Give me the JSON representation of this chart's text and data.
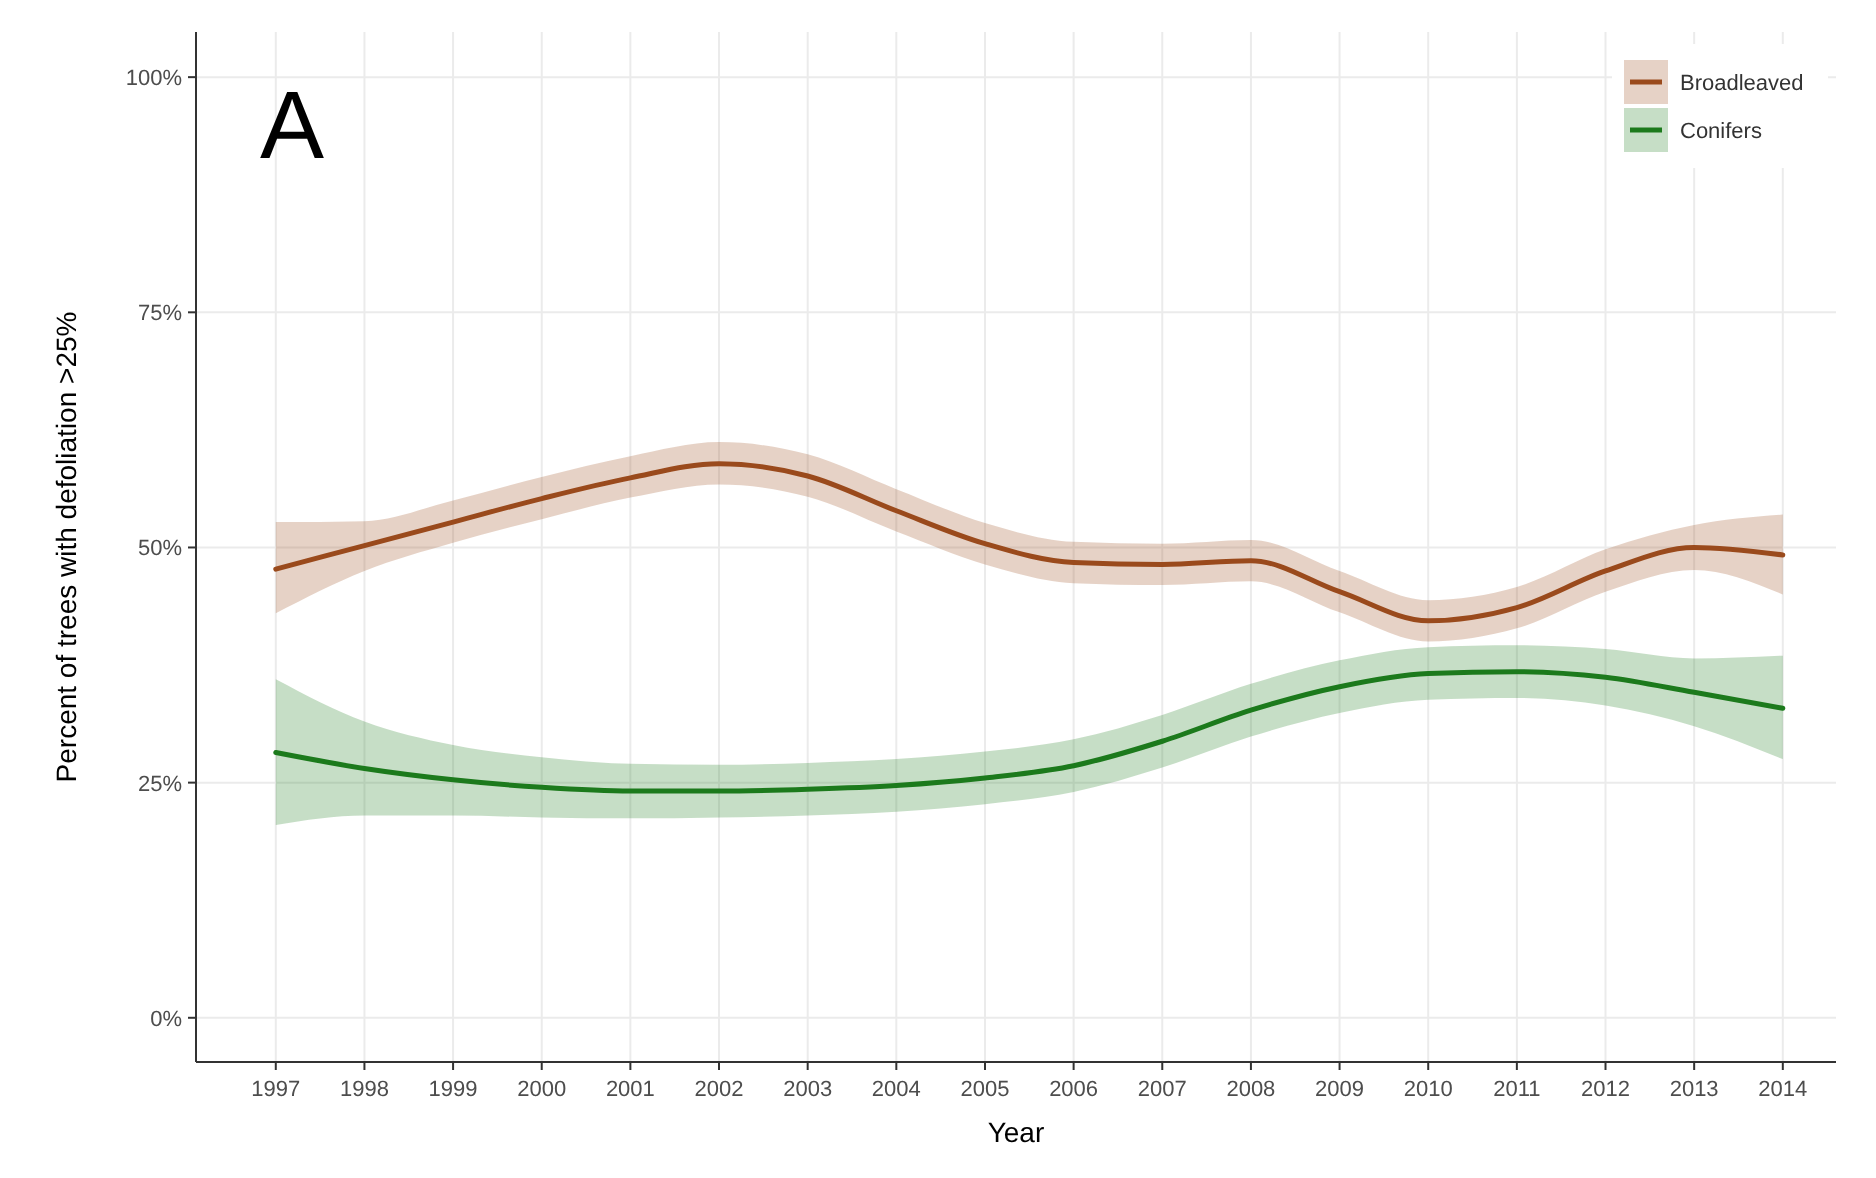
{
  "chart_data": {
    "type": "line",
    "xlabel": "Year",
    "ylabel": "Percent of trees with defoliation >25%",
    "annotations": [
      "A"
    ],
    "x": [
      1997,
      1998,
      1999,
      2000,
      2001,
      2002,
      2003,
      2004,
      2005,
      2006,
      2007,
      2008,
      2009,
      2010,
      2011,
      2012,
      2013,
      2014
    ],
    "xlim": [
      1996.1,
      2014.6
    ],
    "xticks": [
      1997,
      1998,
      1999,
      2000,
      2001,
      2002,
      2003,
      2004,
      2005,
      2006,
      2007,
      2008,
      2009,
      2010,
      2011,
      2012,
      2013,
      2014
    ],
    "ylim": [
      -4.7,
      104.8
    ],
    "yticks": [
      {
        "value": 0,
        "label": "0%"
      },
      {
        "value": 25,
        "label": "25%"
      },
      {
        "value": 50,
        "label": "50%"
      },
      {
        "value": 75,
        "label": "75%"
      },
      {
        "value": 100,
        "label": "100%"
      }
    ],
    "grid": true,
    "legend": "top right",
    "line_style": "solid",
    "marker": "none",
    "series": [
      {
        "name": "Broadleaved",
        "color": "#9a4a1c",
        "values": [
          47.7,
          50.2,
          52.7,
          55.2,
          57.4,
          58.9,
          57.6,
          53.9,
          50.4,
          48.4,
          48.2,
          48.6,
          45.3,
          42.2,
          43.6,
          47.5,
          50.0,
          49.2
        ],
        "lower": [
          43,
          47.5,
          50.5,
          53,
          55.3,
          56.7,
          55.4,
          51.7,
          48.2,
          46.2,
          46,
          46.4,
          43.1,
          40,
          41.4,
          45.3,
          47.6,
          45
        ],
        "upper": [
          52.7,
          52.8,
          55,
          57.5,
          59.7,
          61.2,
          59.9,
          56.2,
          52.6,
          50.6,
          50.4,
          50.8,
          47.5,
          44.4,
          45.8,
          49.8,
          52.4,
          53.5
        ]
      },
      {
        "name": "Conifers",
        "color": "#1c7a1c",
        "values": [
          28.2,
          26.5,
          25.3,
          24.5,
          24.1,
          24.1,
          24.3,
          24.7,
          25.5,
          26.8,
          29.4,
          32.7,
          35.2,
          36.6,
          36.8,
          36.2,
          34.6,
          32.9
        ],
        "lower": [
          20.5,
          21.5,
          21.5,
          21.3,
          21.2,
          21.3,
          21.5,
          21.9,
          22.7,
          24,
          26.6,
          29.9,
          32.4,
          33.8,
          34,
          33.2,
          31,
          27.5
        ],
        "upper": [
          36,
          31.5,
          29,
          27.7,
          27,
          26.9,
          27.1,
          27.5,
          28.3,
          29.6,
          32.2,
          35.5,
          38,
          39.4,
          39.6,
          39.2,
          38.2,
          38.5
        ]
      }
    ]
  }
}
